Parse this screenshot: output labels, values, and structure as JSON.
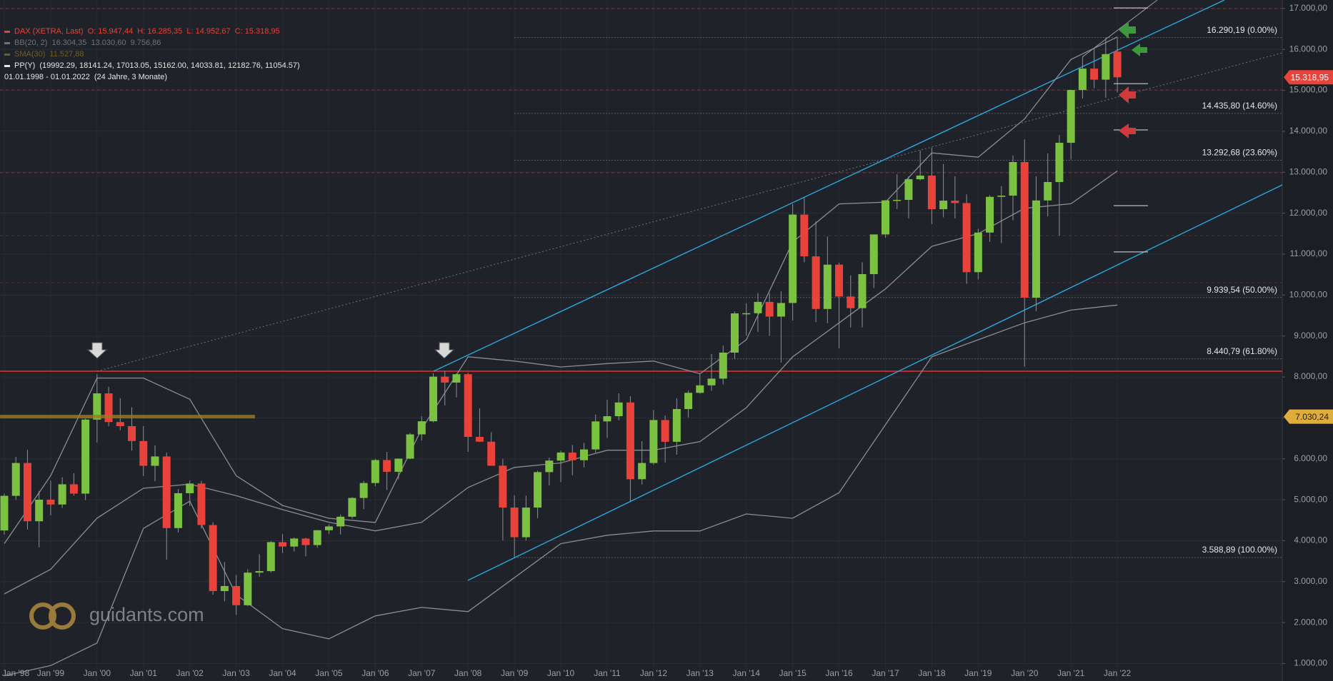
{
  "chart_data": {
    "type": "candlestick",
    "legend": [
      {
        "label": "DAX (XETRA, Last)",
        "values": "O: 15.947,44  H: 16.285,35  L: 14.952,67  C: 15.318,95",
        "color": "#e8423a"
      },
      {
        "label": "BB(20, 2)",
        "values": "16.304,35  13.030,60  9.756,86",
        "color": "#6f747b"
      },
      {
        "label": "SMA(30)",
        "values": "11.527,88",
        "color": "#6a6128"
      },
      {
        "label": "PP(Y)",
        "values": "(19992.29, 18141.24, 17013.05, 15162.00, 14033.81, 12182.76, 11054.57)",
        "color": "#e6e6e6"
      }
    ],
    "date_range": "01.01.1998 - 01.01.2022",
    "date_span": "(24 Jahre, 3 Monate)",
    "logo": "guidants.com",
    "categories": [
      "Jan '98",
      null,
      null,
      null,
      "Jan '99",
      null,
      null,
      null,
      "Jan '00",
      null,
      null,
      null,
      "Jan '01",
      null,
      null,
      null,
      "Jan '02",
      null,
      null,
      null,
      "Jan '03",
      null,
      null,
      null,
      "Jan '04",
      null,
      null,
      null,
      "Jan '05",
      null,
      null,
      null,
      "Jan '06",
      null,
      null,
      null,
      "Jan '07",
      null,
      null,
      null,
      "Jan '08",
      null,
      null,
      null,
      "Jan '09",
      null,
      null,
      null,
      "Jan '10",
      null,
      null,
      null,
      "Jan '11",
      null,
      null,
      null,
      "Jan '12",
      null,
      null,
      null,
      "Jan '13",
      null,
      null,
      null,
      "Jan '14",
      null,
      null,
      null,
      "Jan '15",
      null,
      null,
      null,
      "Jan '16",
      null,
      null,
      null,
      "Jan '17",
      null,
      null,
      null,
      "Jan '18",
      null,
      null,
      null,
      "Jan '19",
      null,
      null,
      null,
      "Jan '20",
      null,
      null,
      null,
      "Jan '21",
      null,
      null,
      null,
      "Jan '22"
    ],
    "open": [
      4250,
      5096,
      5898,
      4475,
      5002,
      4884,
      5378,
      5150,
      6958,
      7599,
      6898,
      6798,
      6434,
      5830,
      6058,
      4308,
      5160,
      5397,
      4383,
      2769,
      2893,
      2424,
      3220,
      3257,
      3965,
      3857,
      4053,
      3893,
      4256,
      4349,
      4586,
      5044,
      5408,
      5970,
      5683,
      6004,
      6597,
      6917,
      8007,
      7862,
      8067,
      6535,
      6418,
      5831,
      4810,
      4085,
      4809,
      5675,
      5957,
      6154,
      5966,
      6229,
      6914,
      7041,
      7376,
      5502,
      5898,
      6947,
      6416,
      7216,
      7612,
      7795,
      7959,
      8594,
      9552,
      9556,
      9833,
      9474,
      9806,
      11966,
      10945,
      9660,
      10743,
      9965,
      9680,
      10511,
      11481,
      12313,
      12325,
      12829,
      12918,
      12097,
      12306,
      12247,
      10559,
      11526,
      12399,
      12428,
      13249,
      9936,
      12311,
      12761,
      13719,
      15008,
      15531,
      15261,
      15947.44
    ],
    "high": [
      5150,
      6050,
      6218,
      5210,
      5470,
      5550,
      5650,
      6990,
      8065,
      7760,
      7480,
      7260,
      6800,
      6330,
      6150,
      5260,
      5470,
      5460,
      4450,
      3480,
      3160,
      3300,
      3670,
      3990,
      4160,
      4080,
      4070,
      4260,
      4400,
      4640,
      5060,
      5460,
      6000,
      6170,
      6010,
      6630,
      7040,
      8090,
      8150,
      8080,
      8100,
      7230,
      6650,
      6000,
      5110,
      5100,
      5710,
      6030,
      6200,
      6340,
      6390,
      7080,
      7440,
      7600,
      7530,
      6430,
      7190,
      7060,
      7480,
      7670,
      8070,
      8560,
      8770,
      9600,
      9800,
      10050,
      10050,
      10090,
      12220,
      12390,
      11800,
      11430,
      10790,
      10480,
      10800,
      11480,
      12320,
      12950,
      12900,
      13530,
      13600,
      13200,
      12900,
      12460,
      11620,
      12440,
      12660,
      13410,
      13800,
      12900,
      13460,
      13910,
      15010,
      15810,
      16030,
      16290,
      16285.35
    ],
    "low": [
      4150,
      5000,
      4270,
      3840,
      4620,
      4800,
      5100,
      4990,
      6400,
      6800,
      6700,
      6200,
      5580,
      5450,
      3540,
      4200,
      4850,
      4300,
      2680,
      2520,
      2190,
      2400,
      3120,
      3220,
      3700,
      3740,
      3620,
      3830,
      4160,
      4150,
      4540,
      4770,
      5330,
      5240,
      5500,
      5990,
      6450,
      6890,
      7300,
      7500,
      6170,
      6410,
      5830,
      4010,
      3590,
      4000,
      4550,
      5350,
      5430,
      5600,
      5790,
      6150,
      6510,
      6940,
      4970,
      5370,
      5860,
      5910,
      6100,
      7010,
      7590,
      7660,
      7820,
      8440,
      9010,
      9100,
      9010,
      8350,
      9380,
      10800,
      9340,
      9310,
      8700,
      9210,
      9210,
      10170,
      11400,
      12100,
      11870,
      12800,
      11730,
      11900,
      11870,
      10280,
      10380,
      11300,
      11270,
      11830,
      8250,
      9610,
      11920,
      11450,
      13310,
      14800,
      15050,
      14820,
      14952.67
    ],
    "close": [
      5096,
      5898,
      4475,
      5002,
      4884,
      5378,
      5150,
      6958,
      7599,
      6898,
      6798,
      6434,
      5830,
      6058,
      4308,
      5160,
      5397,
      4383,
      2769,
      2893,
      2424,
      3220,
      3257,
      3965,
      3857,
      4053,
      3893,
      4256,
      4349,
      4586,
      5044,
      5408,
      5970,
      5683,
      6004,
      6597,
      6917,
      8007,
      7862,
      8067,
      6535,
      6418,
      5831,
      4810,
      4085,
      4809,
      5675,
      5957,
      6154,
      5966,
      6229,
      6914,
      7041,
      7376,
      5502,
      5898,
      6947,
      6416,
      7216,
      7612,
      7795,
      7959,
      8594,
      9552,
      9556,
      9833,
      9474,
      9806,
      11966,
      10945,
      9660,
      10743,
      9965,
      9680,
      10511,
      11481,
      12313,
      12325,
      12829,
      12918,
      12097,
      12306,
      12247,
      10559,
      11526,
      12399,
      12428,
      13249,
      9936,
      12311,
      12761,
      13719,
      15008,
      15531,
      15261,
      15885,
      15318.95
    ],
    "up_color": "#7cc242",
    "down_color": "#e8423a",
    "bollinger": {
      "x": [
        "Jan '98",
        "Jan '99",
        "Jan '00",
        "Jan '01",
        "Jan '02",
        "Jan '03",
        "Jan '04",
        "Jan '05",
        "Jan '06",
        "Jan '07",
        "Jan '08",
        "Jan '09",
        "Jan '10",
        "Jan '11",
        "Jan '12",
        "Jan '13",
        "Jan '14",
        "Jan '15",
        "Jan '16",
        "Jan '17",
        "Jan '18",
        "Jan '19",
        "Jan '20",
        "Jan '21",
        "Jan '22"
      ],
      "series": [
        {
          "color": "#8a8e94",
          "values": [
            3927,
            5587,
            7973,
            7973,
            7455,
            5587,
            4860,
            4549,
            4446,
            6728,
            8492,
            8388,
            8243,
            8326,
            8388,
            8077,
            8907,
            11294,
            12227,
            12269,
            13472,
            13368,
            14302,
            15755,
            16304.35
          ]
        },
        {
          "color": "#8a8e94",
          "values": [
            2700,
            3300,
            4550,
            5280,
            5380,
            5100,
            4760,
            4450,
            4240,
            4450,
            5300,
            5790,
            5900,
            6210,
            6210,
            6420,
            7250,
            8490,
            9320,
            10150,
            11190,
            11500,
            12120,
            12230,
            13030.6
          ]
        },
        {
          "color": "#8a8e94",
          "values": [
            700,
            950,
            1500,
            4300,
            4965,
            2680,
            1852,
            1603,
            2163,
            2370,
            2267,
            3097,
            3927,
            4134,
            4238,
            4238,
            4653,
            4549,
            5172,
            6832,
            8492,
            8907,
            9322,
            9633,
            9756.86
          ]
        }
      ]
    },
    "pivots": [
      19992.29,
      18141.24,
      17013.05,
      15162.0,
      14033.81,
      12182.76,
      11054.57
    ],
    "fib_levels": [
      {
        "value": 16290.19,
        "label": "16.290,19 (0.00%)"
      },
      {
        "value": 14435.8,
        "label": "14.435,80 (14.60%)"
      },
      {
        "value": 13292.68,
        "label": "13.292,68 (23.60%)"
      },
      {
        "value": 9939.54,
        "label": "9.939,54 (50.00%)"
      },
      {
        "value": 8440.79,
        "label": "8.440,79 (61.80%)"
      },
      {
        "value": 3588.89,
        "label": "3.588,89 (100.00%)"
      }
    ],
    "price_tags": [
      {
        "value": 15318.95,
        "label": "15.318,95",
        "color": "#e8423a"
      },
      {
        "value": 7030.24,
        "label": "7.030,24",
        "color": "#e0ad3a"
      }
    ],
    "ylim": [
      573,
      17207
    ],
    "yticks": [
      {
        "value": 1000,
        "label": "1.000,00"
      },
      {
        "value": 2000,
        "label": "2.000,00"
      },
      {
        "value": 3000,
        "label": "3.000,00"
      },
      {
        "value": 4000,
        "label": "4.000,00"
      },
      {
        "value": 5000,
        "label": "5.000,00"
      },
      {
        "value": 6000,
        "label": "6.000,00"
      },
      {
        "value": 7000,
        "label": "7.000,00"
      },
      {
        "value": 8000,
        "label": "8.000,00"
      },
      {
        "value": 9000,
        "label": "9.000,00"
      },
      {
        "value": 10000,
        "label": "10.000,00"
      },
      {
        "value": 11000,
        "label": "11.000,00"
      },
      {
        "value": 12000,
        "label": "12.000,00"
      },
      {
        "value": 13000,
        "label": "13.000,00"
      },
      {
        "value": 14000,
        "label": "14.000,00"
      },
      {
        "value": 15000,
        "label": "15.000,00"
      },
      {
        "value": 16000,
        "label": "16.000,00"
      },
      {
        "value": 17000,
        "label": "17.000,00"
      }
    ],
    "grid": true
  }
}
